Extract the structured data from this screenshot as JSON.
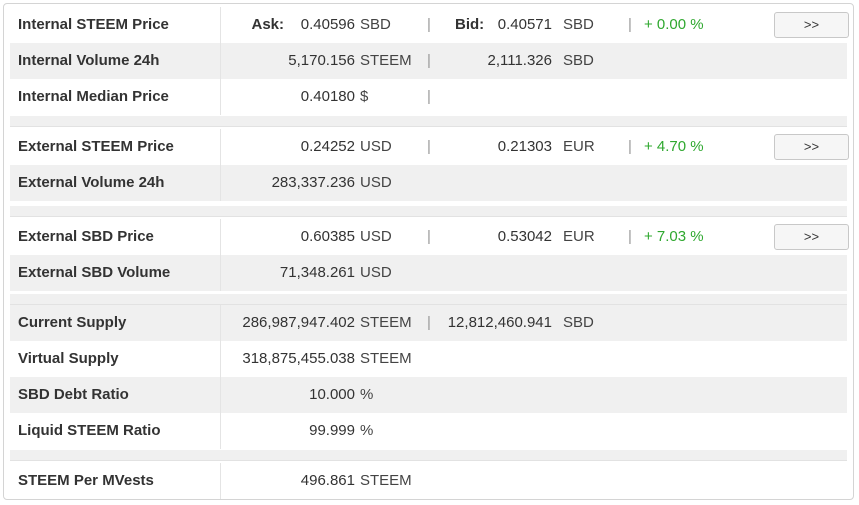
{
  "internal_price": {
    "label": "Internal STEEM Price",
    "ask_label": "Ask:",
    "ask_value": "0.40596",
    "ask_unit": "SBD",
    "bid_label": "Bid:",
    "bid_value": "0.40571",
    "bid_unit": "SBD",
    "change": "+ 0.00  %",
    "button": ">>"
  },
  "internal_volume": {
    "label": "Internal Volume 24h",
    "value1": "5,170.156",
    "unit1": "STEEM",
    "value2": "2,111.326",
    "unit2": "SBD"
  },
  "internal_median": {
    "label": "Internal Median Price",
    "value1": "0.40180",
    "unit1": "$"
  },
  "external_steem_price": {
    "label": "External STEEM Price",
    "value1": "0.24252",
    "unit1": "USD",
    "value2": "0.21303",
    "unit2": "EUR",
    "change": "+ 4.70  %",
    "button": ">>"
  },
  "external_volume": {
    "label": "External Volume 24h",
    "value1": "283,337.236",
    "unit1": "USD"
  },
  "external_sbd_price": {
    "label": "External SBD Price",
    "value1": "0.60385",
    "unit1": "USD",
    "value2": "0.53042",
    "unit2": "EUR",
    "change": "+ 7.03  %",
    "button": ">>"
  },
  "external_sbd_volume": {
    "label": "External SBD Volume",
    "value1": "71,348.261",
    "unit1": "USD"
  },
  "current_supply": {
    "label": "Current Supply",
    "value1": "286,987,947.402",
    "unit1": "STEEM",
    "value2": "12,812,460.941",
    "unit2": "SBD"
  },
  "virtual_supply": {
    "label": "Virtual Supply",
    "value1": "318,875,455.038",
    "unit1": "STEEM"
  },
  "sbd_debt_ratio": {
    "label": "SBD Debt Ratio",
    "value1": "10.000",
    "unit1": "%"
  },
  "liquid_steem_ratio": {
    "label": "Liquid STEEM Ratio",
    "value1": "99.999",
    "unit1": "%"
  },
  "steem_per_mvests": {
    "label": "STEEM Per MVests",
    "value1": "496.861",
    "unit1": "STEEM"
  },
  "separator": "|"
}
